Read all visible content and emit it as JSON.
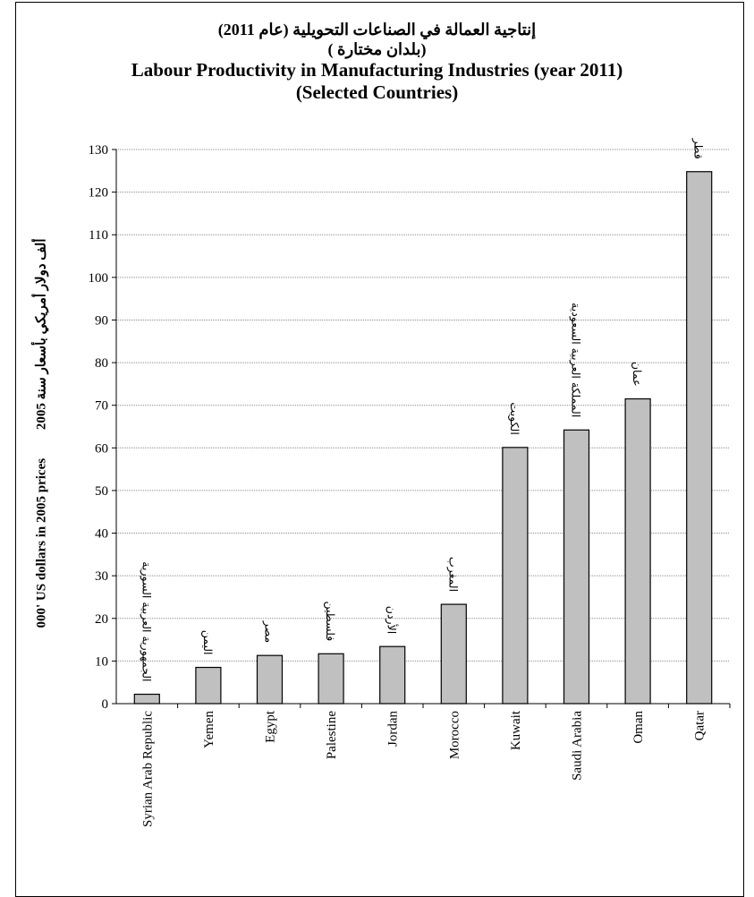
{
  "chart_data": {
    "type": "bar",
    "title_ar_1": "إنتاجية العمالة في الصناعات التحويلية (عام 2011)",
    "title_ar_2": "(بلدان مختارة )",
    "title": "Labour Productivity in Manufacturing Industries (year 2011)",
    "subtitle": "(Selected Countries)",
    "ylabel": "000' US dollars in 2005 prices",
    "ylabel_ar": "ألف دولار أمريكي بأسعار سنة 2005",
    "xlabel": "",
    "ylim": [
      0,
      130
    ],
    "ytick_step": 10,
    "grid": true,
    "bar_color": "#c0c0c0",
    "categories": [
      "Syrian Arab Republic",
      "Yemen",
      "Egypt",
      "Palestine",
      "Jordan",
      "Morocco",
      "Kuwait",
      "Saudi Arabia",
      "Oman",
      "Qatar"
    ],
    "categories_ar": [
      "الجمهورية العربية السورية",
      "اليمن",
      "مصر",
      "فلسطين",
      "الأردن",
      "المغرب",
      "الكويت",
      "المملكة العربية السعودية",
      "عمان",
      "قطر"
    ],
    "values": [
      2.2,
      8.5,
      11.3,
      11.7,
      13.4,
      23.3,
      60.1,
      64.2,
      71.5,
      124.8
    ]
  }
}
